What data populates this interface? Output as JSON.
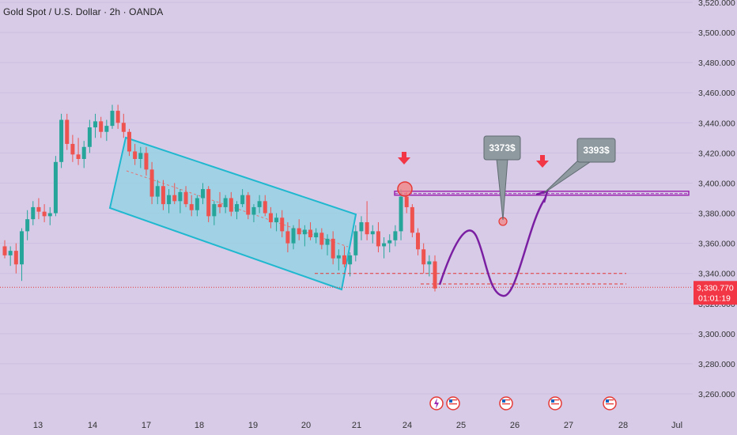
{
  "header": {
    "title": "Gold Spot / U.S. Dollar · 2h · OANDA"
  },
  "colors": {
    "background": "#d7cbe8",
    "up": "#26a69a",
    "down": "#ef5350",
    "channel_stroke": "#1fb8cf",
    "channel_fill": "#8fd3e3",
    "resistance": "#9c27b0",
    "projection": "#7b1fa2",
    "callout": "#8e9aa0",
    "price_badge": "#f23645"
  },
  "current_price": {
    "value": 3330.77,
    "label": "3,330.770",
    "countdown": "01:01:19"
  },
  "callouts": [
    {
      "label": "3373$",
      "value": 3373
    },
    {
      "label": "3393$",
      "value": 3393
    }
  ],
  "chart_data": {
    "type": "candlestick",
    "title": "Gold Spot / U.S. Dollar · 2h · OANDA",
    "ylim": [
      3250,
      3520
    ],
    "y_ticks": [
      {
        "value": 3520,
        "label": "3,520.000"
      },
      {
        "value": 3500,
        "label": "3,500.000"
      },
      {
        "value": 3480,
        "label": "3,480.000"
      },
      {
        "value": 3460,
        "label": "3,460.000"
      },
      {
        "value": 3440,
        "label": "3,440.000"
      },
      {
        "value": 3420,
        "label": "3,420.000"
      },
      {
        "value": 3400,
        "label": "3,400.000"
      },
      {
        "value": 3380,
        "label": "3,380.000"
      },
      {
        "value": 3360,
        "label": "3,360.000"
      },
      {
        "value": 3340,
        "label": "3,340.000"
      },
      {
        "value": 3320,
        "label": "3,320.000"
      },
      {
        "value": 3300,
        "label": "3,300.000"
      },
      {
        "value": 3280,
        "label": "3,280.000"
      },
      {
        "value": 3260,
        "label": "3,260.000"
      }
    ],
    "x_ticks": [
      "13",
      "14",
      "17",
      "18",
      "19",
      "20",
      "21",
      "24",
      "25",
      "26",
      "27",
      "28",
      "Jul"
    ],
    "resistance_level": 3393,
    "support_levels": [
      3340,
      3333
    ],
    "candles": [
      [
        3358,
        3362,
        3350,
        3352
      ],
      [
        3352,
        3358,
        3345,
        3355
      ],
      [
        3355,
        3360,
        3340,
        3346
      ],
      [
        3346,
        3370,
        3335,
        3368
      ],
      [
        3368,
        3382,
        3362,
        3376
      ],
      [
        3376,
        3388,
        3372,
        3384
      ],
      [
        3384,
        3390,
        3376,
        3381
      ],
      [
        3381,
        3386,
        3374,
        3378
      ],
      [
        3378,
        3384,
        3372,
        3380
      ],
      [
        3380,
        3418,
        3378,
        3414
      ],
      [
        3414,
        3446,
        3410,
        3442
      ],
      [
        3442,
        3446,
        3422,
        3426
      ],
      [
        3426,
        3432,
        3414,
        3419
      ],
      [
        3419,
        3430,
        3412,
        3416
      ],
      [
        3416,
        3428,
        3410,
        3424
      ],
      [
        3424,
        3442,
        3420,
        3437
      ],
      [
        3437,
        3446,
        3430,
        3441
      ],
      [
        3441,
        3444,
        3430,
        3434
      ],
      [
        3434,
        3442,
        3428,
        3438
      ],
      [
        3438,
        3452,
        3436,
        3448
      ],
      [
        3448,
        3452,
        3436,
        3440
      ],
      [
        3440,
        3446,
        3430,
        3434
      ],
      [
        3434,
        3436,
        3418,
        3421
      ],
      [
        3421,
        3426,
        3412,
        3416
      ],
      [
        3416,
        3424,
        3410,
        3420
      ],
      [
        3420,
        3424,
        3405,
        3409
      ],
      [
        3409,
        3414,
        3386,
        3391
      ],
      [
        3391,
        3402,
        3386,
        3398
      ],
      [
        3398,
        3402,
        3382,
        3386
      ],
      [
        3386,
        3396,
        3380,
        3392
      ],
      [
        3392,
        3400,
        3386,
        3388
      ],
      [
        3388,
        3396,
        3380,
        3394
      ],
      [
        3394,
        3398,
        3384,
        3386
      ],
      [
        3386,
        3392,
        3378,
        3382
      ],
      [
        3382,
        3392,
        3378,
        3390
      ],
      [
        3390,
        3400,
        3386,
        3396
      ],
      [
        3396,
        3398,
        3374,
        3378
      ],
      [
        3378,
        3388,
        3372,
        3386
      ],
      [
        3386,
        3394,
        3380,
        3384
      ],
      [
        3384,
        3392,
        3380,
        3390
      ],
      [
        3390,
        3394,
        3378,
        3381
      ],
      [
        3381,
        3388,
        3376,
        3386
      ],
      [
        3386,
        3396,
        3384,
        3392
      ],
      [
        3392,
        3394,
        3376,
        3379
      ],
      [
        3379,
        3386,
        3374,
        3384
      ],
      [
        3384,
        3392,
        3380,
        3388
      ],
      [
        3388,
        3392,
        3378,
        3380
      ],
      [
        3380,
        3384,
        3370,
        3374
      ],
      [
        3374,
        3380,
        3368,
        3377
      ],
      [
        3377,
        3382,
        3364,
        3368
      ],
      [
        3368,
        3374,
        3354,
        3360
      ],
      [
        3360,
        3372,
        3356,
        3370
      ],
      [
        3370,
        3376,
        3362,
        3366
      ],
      [
        3366,
        3372,
        3358,
        3369
      ],
      [
        3369,
        3374,
        3362,
        3364
      ],
      [
        3364,
        3370,
        3360,
        3367
      ],
      [
        3367,
        3370,
        3356,
        3359
      ],
      [
        3359,
        3366,
        3352,
        3363
      ],
      [
        3363,
        3368,
        3346,
        3350
      ],
      [
        3350,
        3356,
        3342,
        3352
      ],
      [
        3352,
        3358,
        3344,
        3346
      ],
      [
        3346,
        3354,
        3338,
        3352
      ],
      [
        3352,
        3372,
        3348,
        3368
      ],
      [
        3368,
        3378,
        3362,
        3374
      ],
      [
        3374,
        3388,
        3362,
        3366
      ],
      [
        3366,
        3372,
        3360,
        3368
      ],
      [
        3368,
        3374,
        3354,
        3358
      ],
      [
        3358,
        3364,
        3350,
        3360
      ],
      [
        3360,
        3366,
        3354,
        3362
      ],
      [
        3362,
        3372,
        3358,
        3368
      ],
      [
        3368,
        3396,
        3362,
        3391
      ],
      [
        3391,
        3394,
        3380,
        3384
      ],
      [
        3384,
        3386,
        3364,
        3367
      ],
      [
        3367,
        3370,
        3352,
        3356
      ],
      [
        3356,
        3360,
        3340,
        3346
      ],
      [
        3346,
        3352,
        3338,
        3348
      ],
      [
        3348,
        3352,
        3328,
        3330
      ]
    ]
  }
}
